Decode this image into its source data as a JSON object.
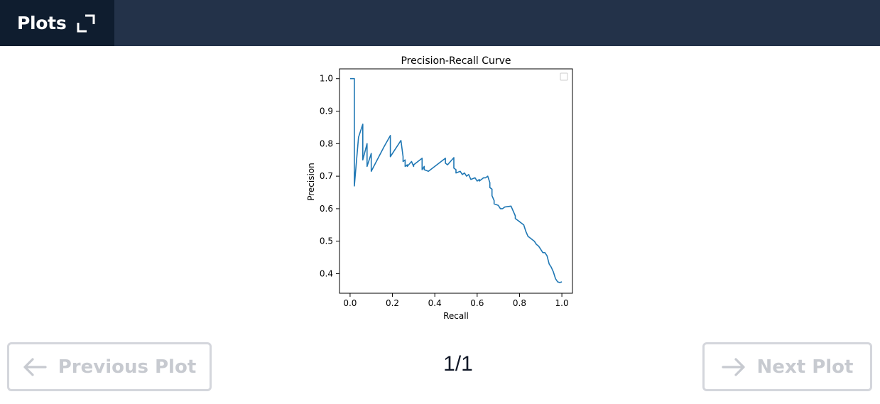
{
  "header": {
    "title": "Plots",
    "expand_icon": "expand-icon",
    "colors": {
      "bar": "#233249",
      "title_cell": "#0f1d2f"
    }
  },
  "pager": {
    "prev_label": "Previous Plot",
    "next_label": "Next Plot",
    "counter": "1/1",
    "prev_icon": "arrow-left-icon",
    "next_icon": "arrow-right-icon"
  },
  "chart_data": {
    "type": "line",
    "title": "Precision-Recall Curve",
    "xlabel": "Recall",
    "ylabel": "Precision",
    "xlim": [
      -0.05,
      1.05
    ],
    "ylim": [
      0.34,
      1.03
    ],
    "xticks": [
      0.0,
      0.2,
      0.4,
      0.6,
      0.8,
      1.0
    ],
    "xtick_labels": [
      "0.0",
      "0.2",
      "0.4",
      "0.6",
      "0.8",
      "1.0"
    ],
    "yticks": [
      0.4,
      0.5,
      0.6,
      0.7,
      0.8,
      0.9,
      1.0
    ],
    "ytick_labels": [
      "0.4",
      "0.5",
      "0.6",
      "0.7",
      "0.8",
      "0.9",
      "1.0"
    ],
    "grid": false,
    "legend": "top-right (empty)",
    "color": "#1f77b4",
    "series": [
      {
        "values_x": [
          0.0,
          0.02,
          0.02,
          0.02,
          0.04,
          0.06,
          0.06,
          0.08,
          0.08,
          0.1,
          0.1,
          0.16,
          0.19,
          0.19,
          0.24,
          0.25,
          0.25,
          0.26,
          0.26,
          0.27,
          0.27,
          0.29,
          0.3,
          0.3,
          0.34,
          0.34,
          0.35,
          0.35,
          0.37,
          0.45,
          0.45,
          0.46,
          0.49,
          0.49,
          0.5,
          0.5,
          0.52,
          0.53,
          0.54,
          0.55,
          0.56,
          0.57,
          0.59,
          0.6,
          0.61,
          0.61,
          0.62,
          0.63,
          0.64,
          0.65,
          0.66,
          0.66,
          0.67,
          0.67,
          0.68,
          0.68,
          0.7,
          0.71,
          0.72,
          0.73,
          0.76,
          0.78,
          0.78,
          0.79,
          0.8,
          0.81,
          0.82,
          0.83,
          0.84,
          0.85,
          0.86,
          0.87,
          0.88,
          0.89,
          0.9,
          0.91,
          0.92,
          0.93,
          0.94,
          0.95,
          0.96,
          0.97,
          0.98,
          0.99,
          1.0
        ],
        "values_y": [
          1.0,
          1.0,
          0.9,
          0.67,
          0.82,
          0.86,
          0.75,
          0.8,
          0.73,
          0.77,
          0.715,
          0.79,
          0.825,
          0.76,
          0.81,
          0.76,
          0.745,
          0.75,
          0.73,
          0.735,
          0.73,
          0.745,
          0.73,
          0.735,
          0.755,
          0.72,
          0.73,
          0.72,
          0.715,
          0.755,
          0.74,
          0.735,
          0.757,
          0.725,
          0.72,
          0.71,
          0.715,
          0.705,
          0.71,
          0.7,
          0.705,
          0.69,
          0.695,
          0.685,
          0.69,
          0.685,
          0.69,
          0.695,
          0.695,
          0.7,
          0.68,
          0.665,
          0.66,
          0.64,
          0.625,
          0.615,
          0.61,
          0.6,
          0.6,
          0.605,
          0.608,
          0.578,
          0.57,
          0.565,
          0.56,
          0.555,
          0.55,
          0.53,
          0.515,
          0.51,
          0.505,
          0.5,
          0.49,
          0.485,
          0.475,
          0.465,
          0.465,
          0.455,
          0.43,
          0.42,
          0.405,
          0.385,
          0.375,
          0.373,
          0.375
        ]
      }
    ]
  }
}
